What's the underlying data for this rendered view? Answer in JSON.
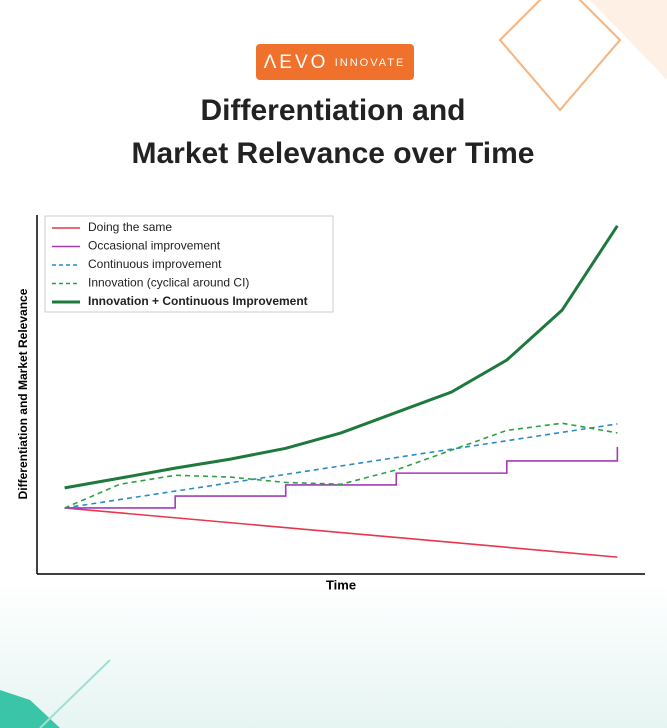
{
  "brand": {
    "name": "ΛEVO",
    "tagline": "INNOVATE"
  },
  "chart_data": {
    "type": "line",
    "title": [
      "Differentiation and",
      "Market Relevance over Time"
    ],
    "xlabel": "Time",
    "ylabel": "Differentiation and Market Relevance",
    "xlim": [
      -0.5,
      10.5
    ],
    "ylim": [
      0,
      100
    ],
    "series": [
      {
        "name": "Doing the same",
        "color": "#e8364f",
        "dashed": false,
        "bold": false,
        "x": [
          0,
          10
        ],
        "values": [
          18.4,
          4.7
        ]
      },
      {
        "name": "Occasional improvement",
        "color": "#a43bb5",
        "dashed": false,
        "bold": false,
        "x": [
          0,
          2,
          2,
          4,
          4,
          6,
          6,
          8,
          8,
          10,
          10
        ],
        "values": [
          18.4,
          18.4,
          21.7,
          21.7,
          24.8,
          24.8,
          28.1,
          28.1,
          31.5,
          31.5,
          35.4
        ]
      },
      {
        "name": "Continuous improvement",
        "color": "#2b8bc4",
        "dashed": true,
        "bold": false,
        "x": [
          0,
          10
        ],
        "values": [
          18.4,
          41.8
        ]
      },
      {
        "name": "Innovation (cyclical around CI)",
        "color": "#2ea043",
        "dashed": true,
        "bold": false,
        "x": [
          0,
          1,
          2,
          3,
          4,
          5,
          6,
          7,
          8,
          9,
          10
        ],
        "values": [
          18.4,
          25,
          27.5,
          27,
          25.5,
          25,
          29,
          34.5,
          40,
          42,
          39.3
        ]
      },
      {
        "name": "Innovation + Continuous Improvement",
        "color": "#1e7a3c",
        "dashed": false,
        "bold": true,
        "x": [
          0,
          1,
          2,
          3,
          4,
          5,
          6,
          7,
          8,
          9,
          10
        ],
        "values": [
          24,
          26.7,
          29.5,
          32,
          35,
          39.3,
          45,
          50.7,
          59.6,
          73.5,
          97
        ]
      }
    ]
  }
}
